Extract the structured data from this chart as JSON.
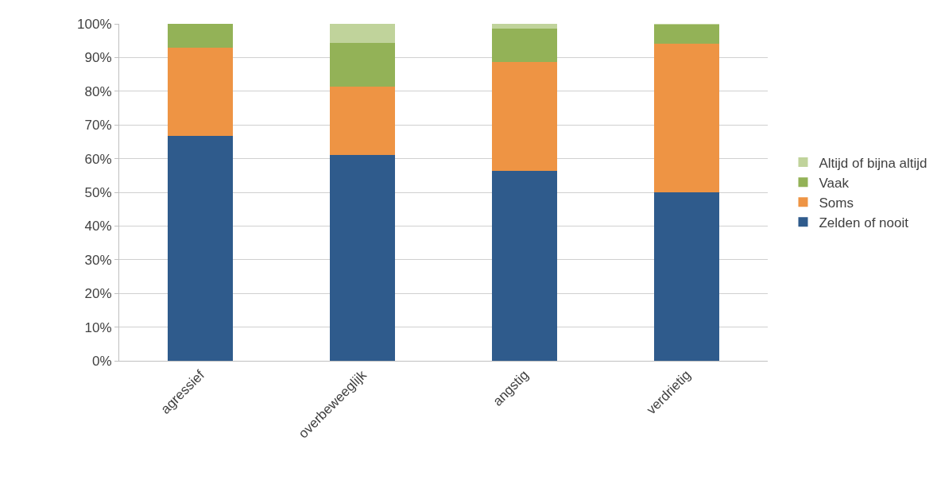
{
  "chart_data": {
    "type": "bar",
    "stacked": true,
    "categories": [
      "agressief",
      "overbeweeglijk",
      "angstig",
      "verdrietig"
    ],
    "series": [
      {
        "name": "Zelden of nooit",
        "color": "#2f5b8c",
        "values": [
          66.7,
          61,
          56.3,
          50
        ]
      },
      {
        "name": "Soms",
        "color": "#ee9444",
        "values": [
          26.2,
          20.4,
          32.3,
          44
        ]
      },
      {
        "name": "Vaak",
        "color": "#93b257",
        "values": [
          7.1,
          13,
          9.9,
          5.8
        ]
      },
      {
        "name": "Altijd of bijna altijd",
        "color": "#c0d39b",
        "values": [
          0,
          5.6,
          1.5,
          0.2
        ]
      }
    ],
    "ylim": [
      0,
      100
    ],
    "yticks": [
      {
        "value": 0,
        "label": "0%"
      },
      {
        "value": 10,
        "label": "10%"
      },
      {
        "value": 20,
        "label": "20%"
      },
      {
        "value": 30,
        "label": "30%"
      },
      {
        "value": 40,
        "label": "40%"
      },
      {
        "value": 50,
        "label": "50%"
      },
      {
        "value": 60,
        "label": "60%"
      },
      {
        "value": 70,
        "label": "70%"
      },
      {
        "value": 80,
        "label": "80%"
      },
      {
        "value": 90,
        "label": "90%"
      },
      {
        "value": 100,
        "label": "100%"
      }
    ],
    "grid": "y",
    "legend": "right"
  }
}
